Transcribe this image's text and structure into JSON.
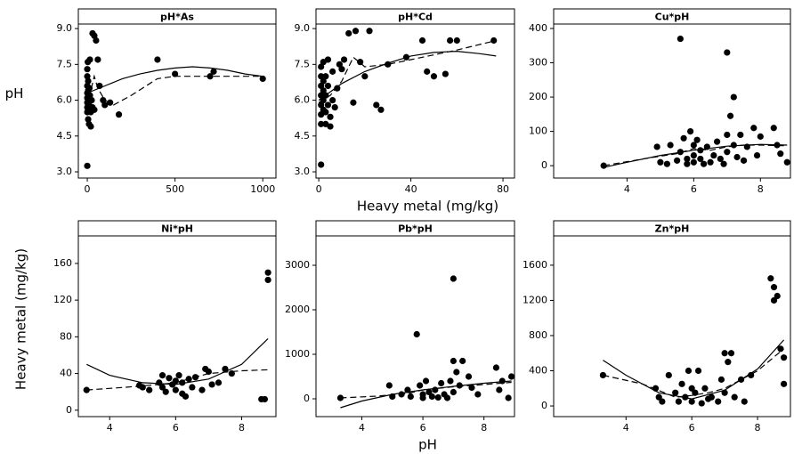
{
  "chart_data": [
    {
      "type": "scatter",
      "title": "pH*As",
      "ylabel": "pH",
      "xlim": [
        -51,
        1075
      ],
      "ylim": [
        2.74,
        9.19
      ],
      "xticks": [
        0,
        500,
        1000
      ],
      "yticks": [
        {
          "value": 3,
          "label": "3.0"
        },
        {
          "value": 4.5,
          "label": "4.5"
        },
        {
          "value": 6,
          "label": "6.0"
        },
        {
          "value": 7.5,
          "label": "7.5"
        },
        {
          "value": 9,
          "label": "9.0"
        }
      ],
      "series": [
        {
          "marker": "circle",
          "color": "#000000",
          "x": [
            0,
            0,
            0,
            0,
            0,
            0,
            0,
            0,
            0,
            5,
            5,
            5,
            5,
            5,
            10,
            10,
            15,
            15,
            20,
            20,
            25,
            30,
            40,
            50,
            60,
            70,
            90,
            100,
            130,
            180,
            400,
            500,
            700,
            720,
            1000,
            30,
            40,
            8,
            12,
            3
          ],
          "y": [
            3.25,
            5.5,
            5.7,
            5.9,
            6.1,
            6.3,
            6.6,
            7.0,
            7.3,
            5.2,
            5.6,
            6.0,
            6.4,
            6.8,
            5.0,
            5.8,
            6.2,
            7.7,
            4.9,
            5.5,
            6.0,
            8.8,
            8.7,
            8.5,
            7.7,
            6.6,
            6.0,
            5.8,
            5.9,
            5.4,
            7.7,
            7.1,
            7.0,
            7.2,
            6.9,
            5.7,
            5.6,
            5.9,
            6.5,
            7.6
          ]
        },
        {
          "line": "solid",
          "color": "#000000",
          "x": [
            0,
            100,
            200,
            300,
            400,
            500,
            600,
            700,
            800,
            900,
            1000
          ],
          "y": [
            6.3,
            6.6,
            6.9,
            7.1,
            7.25,
            7.35,
            7.4,
            7.35,
            7.25,
            7.1,
            7.0
          ]
        },
        {
          "line": "dashed",
          "color": "#000000",
          "x": [
            0,
            20,
            40,
            60,
            100,
            150,
            250,
            400,
            500,
            700,
            1000
          ],
          "y": [
            6.1,
            6.4,
            7.0,
            6.5,
            6.0,
            5.8,
            6.2,
            6.9,
            7.0,
            7.0,
            7.0
          ]
        }
      ]
    },
    {
      "type": "scatter",
      "title": "pH*Cd",
      "xlabel": "Heavy metal (mg/kg)",
      "xlim": [
        -1.2,
        85
      ],
      "ylim": [
        2.74,
        9.19
      ],
      "xticks": [
        0,
        40,
        80
      ],
      "yticks": [
        {
          "value": 3,
          "label": "3.0"
        },
        {
          "value": 4.5,
          "label": "4.5"
        },
        {
          "value": 6,
          "label": "6.0"
        },
        {
          "value": 7.5,
          "label": "7.5"
        },
        {
          "value": 9,
          "label": "9.0"
        }
      ],
      "series": [
        {
          "marker": "circle",
          "color": "#000000",
          "x": [
            1,
            1,
            1,
            1,
            1,
            1,
            1,
            1,
            2,
            2,
            2,
            2,
            2,
            3,
            3,
            3,
            3,
            4,
            4,
            4,
            5,
            5,
            6,
            6,
            7,
            8,
            9,
            10,
            11,
            13,
            15,
            16,
            18,
            20,
            22,
            25,
            27,
            30,
            38,
            45,
            47,
            50,
            55,
            57,
            60,
            76
          ],
          "y": [
            3.3,
            5.0,
            5.4,
            5.8,
            6.2,
            6.6,
            7.0,
            7.4,
            5.6,
            6.0,
            6.4,
            6.8,
            7.6,
            5.0,
            5.5,
            6.2,
            7.0,
            5.8,
            6.6,
            7.7,
            4.9,
            5.3,
            6.0,
            7.2,
            5.7,
            6.5,
            7.5,
            7.3,
            7.7,
            8.8,
            5.9,
            8.9,
            7.6,
            7.0,
            8.9,
            5.8,
            5.6,
            7.5,
            7.8,
            8.5,
            7.2,
            7.0,
            7.1,
            8.5,
            8.5,
            8.5
          ]
        },
        {
          "line": "solid",
          "color": "#000000",
          "x": [
            0,
            10,
            20,
            30,
            40,
            50,
            60,
            70,
            77
          ],
          "y": [
            6.0,
            6.7,
            7.2,
            7.55,
            7.85,
            8.0,
            8.05,
            7.95,
            7.85
          ]
        },
        {
          "line": "dashed",
          "color": "#000000",
          "x": [
            0,
            5,
            10,
            15,
            20,
            30,
            40,
            50,
            60,
            77
          ],
          "y": [
            5.9,
            6.2,
            6.8,
            7.8,
            7.4,
            7.5,
            7.7,
            7.9,
            8.1,
            8.5
          ]
        }
      ]
    },
    {
      "type": "scatter",
      "title": "Cu*pH",
      "xlim": [
        1.8,
        8.9
      ],
      "ylim": [
        -36,
        413
      ],
      "xticks": [
        4,
        6,
        8
      ],
      "yticks": [
        0,
        100,
        200,
        300,
        400
      ],
      "series": [
        {
          "marker": "circle",
          "color": "#000000",
          "x": [
            3.3,
            4.9,
            5.0,
            5.2,
            5.3,
            5.5,
            5.6,
            5.6,
            5.7,
            5.8,
            5.8,
            5.9,
            6.0,
            6.0,
            6.0,
            6.1,
            6.2,
            6.2,
            6.3,
            6.4,
            6.5,
            6.6,
            6.7,
            6.8,
            6.9,
            7.0,
            7.0,
            7.0,
            7.1,
            7.2,
            7.2,
            7.3,
            7.4,
            7.5,
            7.6,
            7.8,
            7.9,
            8.0,
            8.4,
            8.5,
            8.6,
            8.8
          ],
          "y": [
            0,
            55,
            10,
            5,
            60,
            15,
            370,
            40,
            80,
            20,
            5,
            100,
            60,
            30,
            10,
            75,
            20,
            45,
            5,
            55,
            10,
            30,
            70,
            20,
            5,
            330,
            90,
            40,
            145,
            200,
            60,
            25,
            90,
            15,
            55,
            110,
            30,
            85,
            110,
            60,
            35,
            10
          ]
        },
        {
          "line": "solid",
          "color": "#000000",
          "x": [
            3.3,
            4,
            5,
            6,
            7,
            8,
            8.8
          ],
          "y": [
            -5,
            10,
            30,
            45,
            57,
            62,
            60
          ]
        },
        {
          "line": "dashed",
          "color": "#000000",
          "x": [
            3.3,
            4.5,
            5.5,
            6,
            6.5,
            7,
            7.5,
            8,
            8.8
          ],
          "y": [
            0,
            20,
            35,
            50,
            45,
            55,
            60,
            60,
            58
          ]
        }
      ]
    },
    {
      "type": "scatter",
      "title": "Ni*pH",
      "ylabel": "Heavy metal (mg/kg)",
      "xlim": [
        3.05,
        9.04
      ],
      "ylim": [
        -7,
        190
      ],
      "xticks": [
        4,
        6,
        8
      ],
      "yticks": [
        0,
        40,
        80,
        120,
        160
      ],
      "series": [
        {
          "marker": "circle",
          "color": "#000000",
          "x": [
            3.3,
            4.9,
            5.0,
            5.2,
            5.5,
            5.6,
            5.6,
            5.7,
            5.8,
            5.9,
            6.0,
            6.0,
            6.1,
            6.2,
            6.2,
            6.3,
            6.4,
            6.5,
            6.6,
            6.8,
            6.9,
            7.0,
            7.1,
            7.3,
            7.5,
            7.7,
            8.6,
            8.7,
            8.8,
            8.8
          ],
          "y": [
            22,
            27,
            25,
            22,
            30,
            38,
            25,
            20,
            35,
            28,
            32,
            22,
            38,
            18,
            30,
            15,
            34,
            25,
            36,
            22,
            45,
            42,
            28,
            30,
            45,
            40,
            12,
            12,
            150,
            142
          ]
        },
        {
          "line": "solid",
          "color": "#000000",
          "x": [
            3.3,
            4,
            5,
            6,
            7,
            8,
            8.8
          ],
          "y": [
            50,
            38,
            30,
            28,
            34,
            50,
            78
          ]
        },
        {
          "line": "dashed",
          "color": "#000000",
          "x": [
            3.3,
            4.5,
            5.5,
            6,
            6.5,
            7,
            8,
            8.8
          ],
          "y": [
            22,
            25,
            28,
            30,
            35,
            40,
            43,
            44
          ]
        }
      ]
    },
    {
      "type": "scatter",
      "title": "Pb*pH",
      "xlabel": "pH",
      "xlim": [
        2.5,
        9.0
      ],
      "ylim": [
        -400,
        3660
      ],
      "xticks": [
        4,
        6,
        8
      ],
      "yticks": [
        0,
        1000,
        2000,
        3000
      ],
      "series": [
        {
          "marker": "circle",
          "color": "#000000",
          "x": [
            3.3,
            4.9,
            5.0,
            5.3,
            5.5,
            5.6,
            5.8,
            5.9,
            6.0,
            6.0,
            6.1,
            6.2,
            6.3,
            6.4,
            6.5,
            6.6,
            6.7,
            6.8,
            6.9,
            7.0,
            7.0,
            7.0,
            7.1,
            7.2,
            7.3,
            7.5,
            7.6,
            7.8,
            8.4,
            8.5,
            8.6,
            8.8,
            8.9
          ],
          "y": [
            20,
            300,
            50,
            100,
            200,
            50,
            1450,
            300,
            100,
            20,
            400,
            150,
            50,
            200,
            30,
            350,
            100,
            20,
            400,
            2700,
            850,
            150,
            600,
            300,
            850,
            500,
            250,
            100,
            700,
            200,
            400,
            20,
            500
          ]
        },
        {
          "line": "solid",
          "color": "#000000",
          "x": [
            3.3,
            4,
            5,
            6,
            7,
            8,
            8.9
          ],
          "y": [
            -200,
            -50,
            100,
            200,
            280,
            350,
            400
          ]
        },
        {
          "line": "dashed",
          "color": "#000000",
          "x": [
            3.3,
            4.5,
            5.5,
            6,
            7,
            8,
            8.9
          ],
          "y": [
            20,
            60,
            120,
            200,
            270,
            320,
            370
          ]
        }
      ]
    },
    {
      "type": "scatter",
      "title": "Zn*pH",
      "xlim": [
        1.8,
        9.0
      ],
      "ylim": [
        -121,
        1933
      ],
      "xticks": [
        4,
        6,
        8
      ],
      "yticks": [
        0,
        400,
        800,
        1200,
        1600
      ],
      "series": [
        {
          "marker": "circle",
          "color": "#000000",
          "x": [
            3.3,
            4.9,
            5.0,
            5.1,
            5.3,
            5.5,
            5.6,
            5.7,
            5.8,
            5.9,
            6.0,
            6.0,
            6.1,
            6.2,
            6.3,
            6.4,
            6.5,
            6.6,
            6.8,
            6.9,
            7.0,
            7.0,
            7.1,
            7.2,
            7.3,
            7.5,
            7.6,
            7.8,
            8.4,
            8.5,
            8.5,
            8.6,
            8.7,
            8.8,
            8.8
          ],
          "y": [
            350,
            200,
            100,
            50,
            350,
            150,
            50,
            250,
            100,
            400,
            200,
            50,
            150,
            400,
            30,
            200,
            80,
            100,
            50,
            300,
            600,
            150,
            500,
            600,
            100,
            300,
            50,
            350,
            1450,
            1350,
            1200,
            1250,
            650,
            550,
            250
          ]
        },
        {
          "line": "solid",
          "color": "#000000",
          "x": [
            3.3,
            4,
            5,
            6,
            7,
            8,
            8.8
          ],
          "y": [
            520,
            350,
            150,
            80,
            180,
            420,
            750
          ]
        },
        {
          "line": "dashed",
          "color": "#000000",
          "x": [
            3.3,
            4.5,
            5.5,
            6,
            6.5,
            7,
            8,
            8.8
          ],
          "y": [
            350,
            250,
            100,
            120,
            150,
            200,
            400,
            650
          ]
        }
      ]
    }
  ]
}
